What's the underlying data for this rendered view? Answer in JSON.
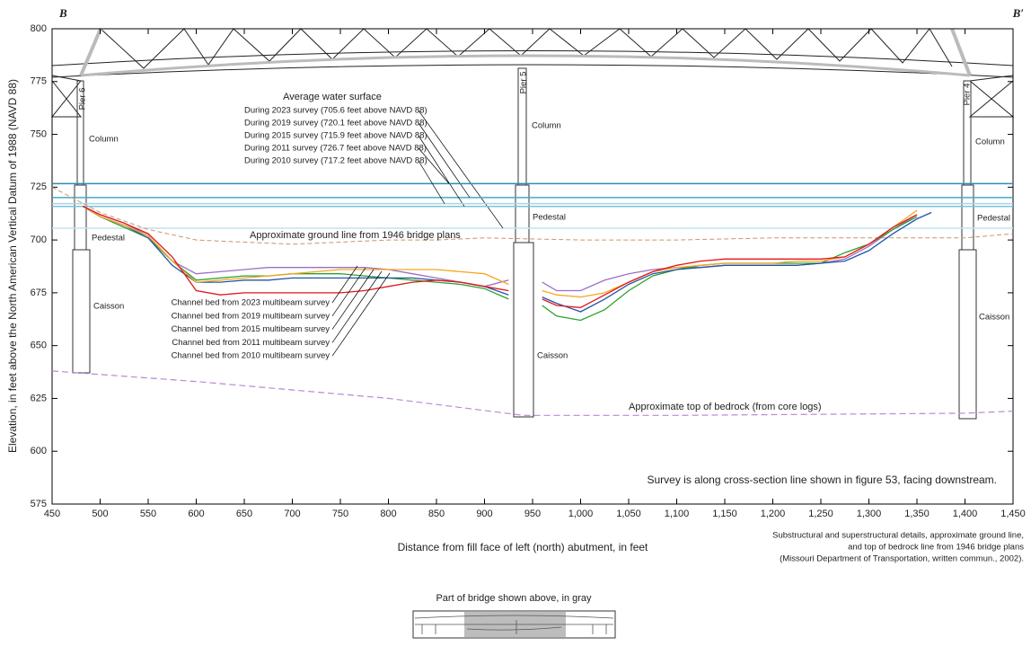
{
  "chart_data": {
    "type": "line",
    "x_label": "Distance from fill face of left (north) abutment, in feet",
    "y_label": "Elevation, in feet above the North American Vertical Datum of 1988 (NAVD 88)",
    "xlim": [
      450,
      1450
    ],
    "ylim": [
      575,
      800
    ],
    "xticks": [
      450,
      500,
      550,
      600,
      650,
      700,
      750,
      800,
      850,
      900,
      950,
      {
        "value": 1000,
        "label": "1,000"
      },
      {
        "value": 1050,
        "label": "1,050"
      },
      {
        "value": 1100,
        "label": "1,100"
      },
      {
        "value": 1150,
        "label": "1,150"
      },
      {
        "value": 1200,
        "label": "1,200"
      },
      {
        "value": 1250,
        "label": "1,250"
      },
      {
        "value": 1300,
        "label": "1,300"
      },
      {
        "value": 1350,
        "label": "1,350"
      },
      {
        "value": 1400,
        "label": "1,400"
      },
      {
        "value": 1450,
        "label": "1,450"
      }
    ],
    "yticks": [
      575,
      600,
      625,
      650,
      675,
      700,
      725,
      750,
      775,
      800
    ],
    "x": [
      482,
      500,
      525,
      550,
      575,
      600,
      625,
      650,
      675,
      700,
      725,
      750,
      775,
      800,
      825,
      850,
      875,
      900,
      925,
      945,
      960,
      975,
      1000,
      1025,
      1050,
      1075,
      1100,
      1125,
      1150,
      1175,
      1200,
      1225,
      1250,
      1275,
      1300,
      1325,
      1350,
      1365
    ],
    "series": [
      {
        "name": "Channel bed from 2023 multibeam survey",
        "color": "#e3161b",
        "values": [
          716,
          712,
          708,
          703,
          692,
          676,
          674,
          675,
          675,
          675,
          675,
          675,
          676,
          678,
          680,
          681,
          680,
          678,
          676,
          null,
          672,
          669,
          668,
          674,
          680,
          685,
          688,
          690,
          691,
          691,
          691,
          691,
          691,
          692,
          698,
          706,
          712,
          null
        ]
      },
      {
        "name": "Channel bed from 2019 multibeam survey",
        "color": "#f5a623",
        "values": [
          716,
          711,
          707,
          702,
          690,
          680,
          681,
          682,
          683,
          684,
          685,
          686,
          686,
          686,
          686,
          686,
          685,
          684,
          679,
          null,
          676,
          674,
          673,
          675,
          680,
          685,
          687,
          688,
          689,
          689,
          689,
          690,
          690,
          692,
          698,
          706,
          714,
          null
        ]
      },
      {
        "name": "Channel bed from 2015 multibeam survey",
        "color": "#2455a4",
        "values": [
          716,
          711,
          707,
          701,
          688,
          680,
          680,
          681,
          681,
          682,
          682,
          682,
          682,
          682,
          682,
          681,
          680,
          678,
          674,
          null,
          673,
          670,
          666,
          672,
          679,
          684,
          686,
          687,
          688,
          688,
          688,
          688,
          689,
          690,
          695,
          703,
          710,
          713
        ]
      },
      {
        "name": "Channel bed from 2011 multibeam survey",
        "color": "#2ca02c",
        "values": [
          716,
          711,
          706,
          701,
          690,
          681,
          682,
          683,
          683,
          684,
          684,
          684,
          683,
          682,
          681,
          680,
          679,
          677,
          672,
          null,
          669,
          664,
          662,
          667,
          676,
          683,
          686,
          688,
          689,
          689,
          689,
          689,
          689,
          694,
          698,
          705,
          711,
          null
        ]
      },
      {
        "name": "Channel bed from 2010 multibeam survey",
        "color": "#9b6fc7",
        "values": [
          716,
          712,
          708,
          702,
          690,
          684,
          685,
          686,
          687,
          687,
          687,
          687,
          687,
          686,
          684,
          682,
          680,
          678,
          681,
          null,
          680,
          676,
          676,
          681,
          684,
          686,
          687,
          687,
          688,
          688,
          688,
          688,
          689,
          691,
          697,
          705,
          712,
          null
        ]
      }
    ],
    "water_surface_title": "Average water surface",
    "water_surface": [
      {
        "name": "During 2023 survey (705.6 feet above NAVD 88)",
        "value": 705.6,
        "color": "#bfe4ef"
      },
      {
        "name": "During 2019 survey (720.1 feet above NAVD 88)",
        "value": 720.1,
        "color": "#4aa8c8"
      },
      {
        "name": "During 2015 survey (715.9 feet above NAVD 88)",
        "value": 715.9,
        "color": "#7cc3da"
      },
      {
        "name": "During 2011 survey (726.7 feet above NAVD 88)",
        "value": 726.7,
        "color": "#2b8cb5"
      },
      {
        "name": "During 2010 survey (717.2 feet above NAVD 88)",
        "value": 717.2,
        "color": "#a3d6e6"
      }
    ],
    "ground_line": {
      "name": "Approximate ground line from 1946 bridge plans",
      "color": "#c8966a",
      "x": [
        450,
        500,
        550,
        600,
        650,
        700,
        750,
        800,
        850,
        900,
        1000,
        1100,
        1200,
        1300,
        1400,
        1450
      ],
      "values": [
        725,
        713,
        705,
        700,
        699,
        698,
        699,
        700,
        700,
        701,
        700,
        700,
        701,
        701,
        701,
        703
      ]
    },
    "bedrock_line": {
      "name": "Approximate top of bedrock (from core logs)",
      "color": "#b58ad6",
      "x": [
        450,
        600,
        800,
        940,
        1100,
        1400,
        1450
      ],
      "values": [
        638,
        633,
        625,
        617,
        617,
        618,
        619
      ]
    },
    "annotations": [
      "B",
      "B′",
      "Pier 6",
      "Pier 5",
      "Pier 4",
      "Column",
      "Column",
      "Column",
      "Pedestal",
      "Pedestal",
      "Pedestal",
      "Caisson",
      "Caisson",
      "Caisson",
      "Survey is along cross-section line shown in figure 53, facing downstream."
    ],
    "source_note": [
      "Substructural and superstructural details, approximate ground line,",
      "and top of bedrock line from 1946 bridge plans",
      "(Missouri Department of Transportation, written commun., 2002)."
    ],
    "inset_title": "Part of bridge shown above, in gray"
  }
}
